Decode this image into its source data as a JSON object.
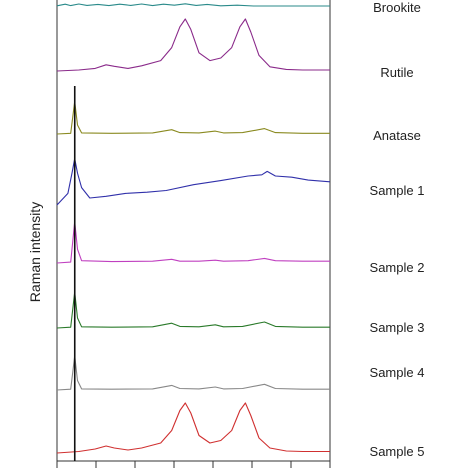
{
  "chart_data": {
    "type": "line",
    "ylabel": "Raman intensity",
    "xlabel": "",
    "grid": false,
    "x_range": [
      0,
      1
    ],
    "reference_line_x": 0.065,
    "series_order_note": "stacked traces, top to bottom",
    "series": [
      {
        "name": "Brookite",
        "color": "#2a8a8a",
        "baseline": 1.0,
        "amplitude": 0.05,
        "points": [
          [
            0.0,
            0.05
          ],
          [
            0.03,
            0.45
          ],
          [
            0.05,
            0.1
          ],
          [
            0.08,
            0.5
          ],
          [
            0.11,
            0.15
          ],
          [
            0.15,
            0.4
          ],
          [
            0.19,
            0.1
          ],
          [
            0.23,
            0.45
          ],
          [
            0.27,
            0.15
          ],
          [
            0.31,
            0.5
          ],
          [
            0.35,
            0.1
          ],
          [
            0.39,
            0.45
          ],
          [
            0.43,
            0.2
          ],
          [
            0.47,
            0.55
          ],
          [
            0.51,
            0.15
          ],
          [
            0.55,
            0.4
          ],
          [
            0.6,
            0.05
          ],
          [
            0.66,
            0.2
          ],
          [
            0.72,
            0.0
          ],
          [
            0.8,
            0.0
          ],
          [
            0.9,
            0.0
          ],
          [
            1.0,
            0.0
          ]
        ]
      },
      {
        "name": "Rutile",
        "color": "#8a2a8a",
        "baseline": 0.0,
        "amplitude": 1.0,
        "points": [
          [
            0.0,
            0.0
          ],
          [
            0.08,
            0.02
          ],
          [
            0.14,
            0.05
          ],
          [
            0.18,
            0.12
          ],
          [
            0.21,
            0.09
          ],
          [
            0.26,
            0.05
          ],
          [
            0.31,
            0.1
          ],
          [
            0.38,
            0.2
          ],
          [
            0.42,
            0.45
          ],
          [
            0.45,
            0.85
          ],
          [
            0.47,
            1.0
          ],
          [
            0.49,
            0.8
          ],
          [
            0.52,
            0.35
          ],
          [
            0.56,
            0.2
          ],
          [
            0.6,
            0.25
          ],
          [
            0.64,
            0.45
          ],
          [
            0.67,
            0.85
          ],
          [
            0.69,
            1.0
          ],
          [
            0.71,
            0.75
          ],
          [
            0.74,
            0.3
          ],
          [
            0.78,
            0.08
          ],
          [
            0.84,
            0.03
          ],
          [
            0.9,
            0.02
          ],
          [
            1.0,
            0.02
          ]
        ]
      },
      {
        "name": "Anatase",
        "color": "#8a8a20",
        "baseline": 0.0,
        "amplitude": 1.0,
        "points": [
          [
            0.0,
            0.0
          ],
          [
            0.05,
            0.02
          ],
          [
            0.065,
            0.9
          ],
          [
            0.075,
            0.25
          ],
          [
            0.09,
            0.03
          ],
          [
            0.2,
            0.02
          ],
          [
            0.35,
            0.03
          ],
          [
            0.42,
            0.12
          ],
          [
            0.45,
            0.04
          ],
          [
            0.52,
            0.03
          ],
          [
            0.58,
            0.08
          ],
          [
            0.61,
            0.03
          ],
          [
            0.68,
            0.04
          ],
          [
            0.76,
            0.15
          ],
          [
            0.8,
            0.04
          ],
          [
            0.9,
            0.02
          ],
          [
            1.0,
            0.02
          ]
        ]
      },
      {
        "name": "Sample 1",
        "color": "#3030aa",
        "baseline": 0.0,
        "amplitude": 1.0,
        "points": [
          [
            0.0,
            0.0
          ],
          [
            0.04,
            0.2
          ],
          [
            0.055,
            0.55
          ],
          [
            0.065,
            0.8
          ],
          [
            0.075,
            0.55
          ],
          [
            0.09,
            0.3
          ],
          [
            0.12,
            0.12
          ],
          [
            0.18,
            0.15
          ],
          [
            0.25,
            0.2
          ],
          [
            0.33,
            0.22
          ],
          [
            0.4,
            0.25
          ],
          [
            0.5,
            0.35
          ],
          [
            0.6,
            0.42
          ],
          [
            0.7,
            0.5
          ],
          [
            0.75,
            0.52
          ],
          [
            0.77,
            0.58
          ],
          [
            0.8,
            0.5
          ],
          [
            0.86,
            0.48
          ],
          [
            0.92,
            0.43
          ],
          [
            1.0,
            0.4
          ]
        ]
      },
      {
        "name": "Sample 2",
        "color": "#c040c0",
        "baseline": 0.0,
        "amplitude": 1.0,
        "points": [
          [
            0.0,
            0.0
          ],
          [
            0.05,
            0.02
          ],
          [
            0.065,
            0.9
          ],
          [
            0.075,
            0.3
          ],
          [
            0.09,
            0.05
          ],
          [
            0.2,
            0.03
          ],
          [
            0.35,
            0.04
          ],
          [
            0.42,
            0.08
          ],
          [
            0.45,
            0.04
          ],
          [
            0.52,
            0.04
          ],
          [
            0.58,
            0.06
          ],
          [
            0.61,
            0.04
          ],
          [
            0.7,
            0.05
          ],
          [
            0.76,
            0.1
          ],
          [
            0.8,
            0.05
          ],
          [
            0.9,
            0.04
          ],
          [
            1.0,
            0.04
          ]
        ]
      },
      {
        "name": "Sample 3",
        "color": "#2a7a2a",
        "baseline": 0.0,
        "amplitude": 1.0,
        "points": [
          [
            0.0,
            0.0
          ],
          [
            0.05,
            0.02
          ],
          [
            0.065,
            0.9
          ],
          [
            0.075,
            0.25
          ],
          [
            0.09,
            0.03
          ],
          [
            0.2,
            0.02
          ],
          [
            0.35,
            0.03
          ],
          [
            0.42,
            0.12
          ],
          [
            0.45,
            0.04
          ],
          [
            0.52,
            0.03
          ],
          [
            0.58,
            0.08
          ],
          [
            0.61,
            0.03
          ],
          [
            0.68,
            0.04
          ],
          [
            0.76,
            0.15
          ],
          [
            0.8,
            0.04
          ],
          [
            0.9,
            0.02
          ],
          [
            1.0,
            0.02
          ]
        ]
      },
      {
        "name": "Sample 4",
        "color": "#888888",
        "baseline": 0.0,
        "amplitude": 1.0,
        "points": [
          [
            0.0,
            0.0
          ],
          [
            0.05,
            0.02
          ],
          [
            0.065,
            0.9
          ],
          [
            0.075,
            0.25
          ],
          [
            0.09,
            0.03
          ],
          [
            0.2,
            0.02
          ],
          [
            0.35,
            0.03
          ],
          [
            0.42,
            0.12
          ],
          [
            0.45,
            0.04
          ],
          [
            0.52,
            0.03
          ],
          [
            0.58,
            0.08
          ],
          [
            0.61,
            0.03
          ],
          [
            0.68,
            0.04
          ],
          [
            0.76,
            0.15
          ],
          [
            0.8,
            0.04
          ],
          [
            0.9,
            0.02
          ],
          [
            1.0,
            0.02
          ]
        ]
      },
      {
        "name": "Sample 5",
        "color": "#d03030",
        "baseline": 0.0,
        "amplitude": 1.0,
        "points": [
          [
            0.0,
            0.0
          ],
          [
            0.08,
            0.03
          ],
          [
            0.14,
            0.08
          ],
          [
            0.18,
            0.14
          ],
          [
            0.21,
            0.1
          ],
          [
            0.26,
            0.06
          ],
          [
            0.31,
            0.1
          ],
          [
            0.38,
            0.2
          ],
          [
            0.42,
            0.45
          ],
          [
            0.45,
            0.85
          ],
          [
            0.47,
            1.0
          ],
          [
            0.49,
            0.8
          ],
          [
            0.52,
            0.35
          ],
          [
            0.56,
            0.2
          ],
          [
            0.6,
            0.25
          ],
          [
            0.64,
            0.45
          ],
          [
            0.67,
            0.85
          ],
          [
            0.69,
            1.0
          ],
          [
            0.71,
            0.75
          ],
          [
            0.74,
            0.3
          ],
          [
            0.78,
            0.1
          ],
          [
            0.84,
            0.04
          ],
          [
            0.9,
            0.03
          ],
          [
            1.0,
            0.03
          ]
        ]
      }
    ],
    "labels": [
      "Brookite",
      "Rutile",
      "Anatase",
      "Sample 1",
      "Sample 2",
      "Sample 3",
      "Sample 4",
      "Sample 5"
    ]
  }
}
